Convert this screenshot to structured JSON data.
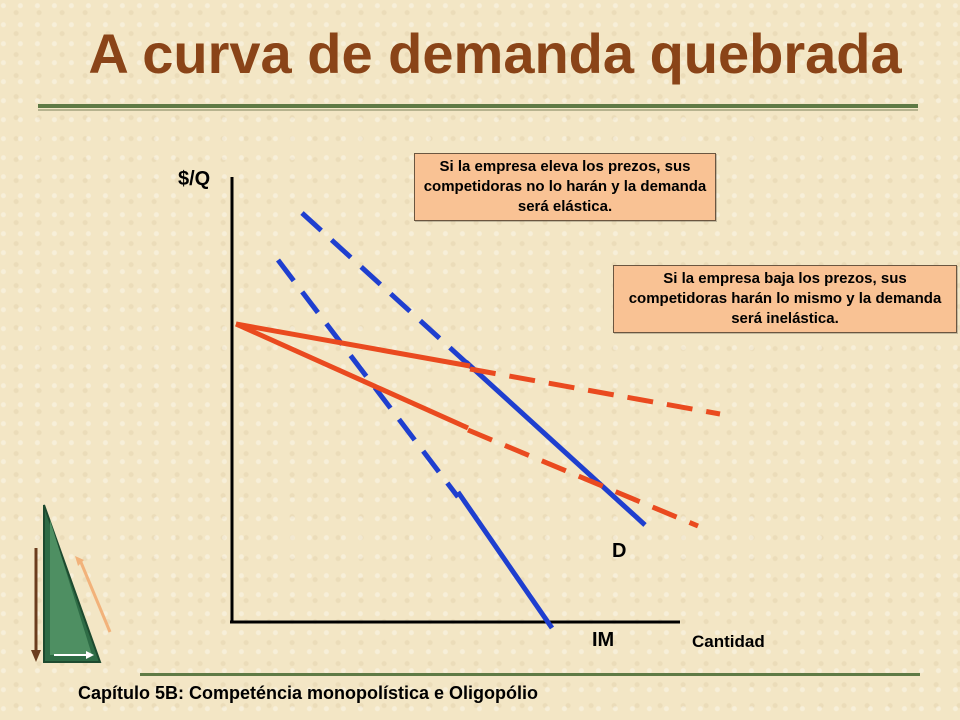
{
  "slide": {
    "title": "A curva de demanda quebrada",
    "footer": "Capítulo 5B: Competéncia monopolística e Oligopólio"
  },
  "diagram": {
    "y_axis_label": "$/Q",
    "x_axis_label": "Cantidad",
    "demand_label": "D",
    "marginal_revenue_label": "IM",
    "callout_raise": "Si la empresa eleva los prezos, sus competidoras no lo harán y la demanda será elástica.",
    "callout_lower": "Si la empresa baja los prezos, sus competidoras harán lo mismo y la demanda será inelástica.",
    "colors": {
      "demand": "#1f3fcf",
      "kinked_segments": "#ea4a1f",
      "axes": "#000000",
      "title": "#8a4418",
      "callout_fill": "#f9c294"
    }
  }
}
